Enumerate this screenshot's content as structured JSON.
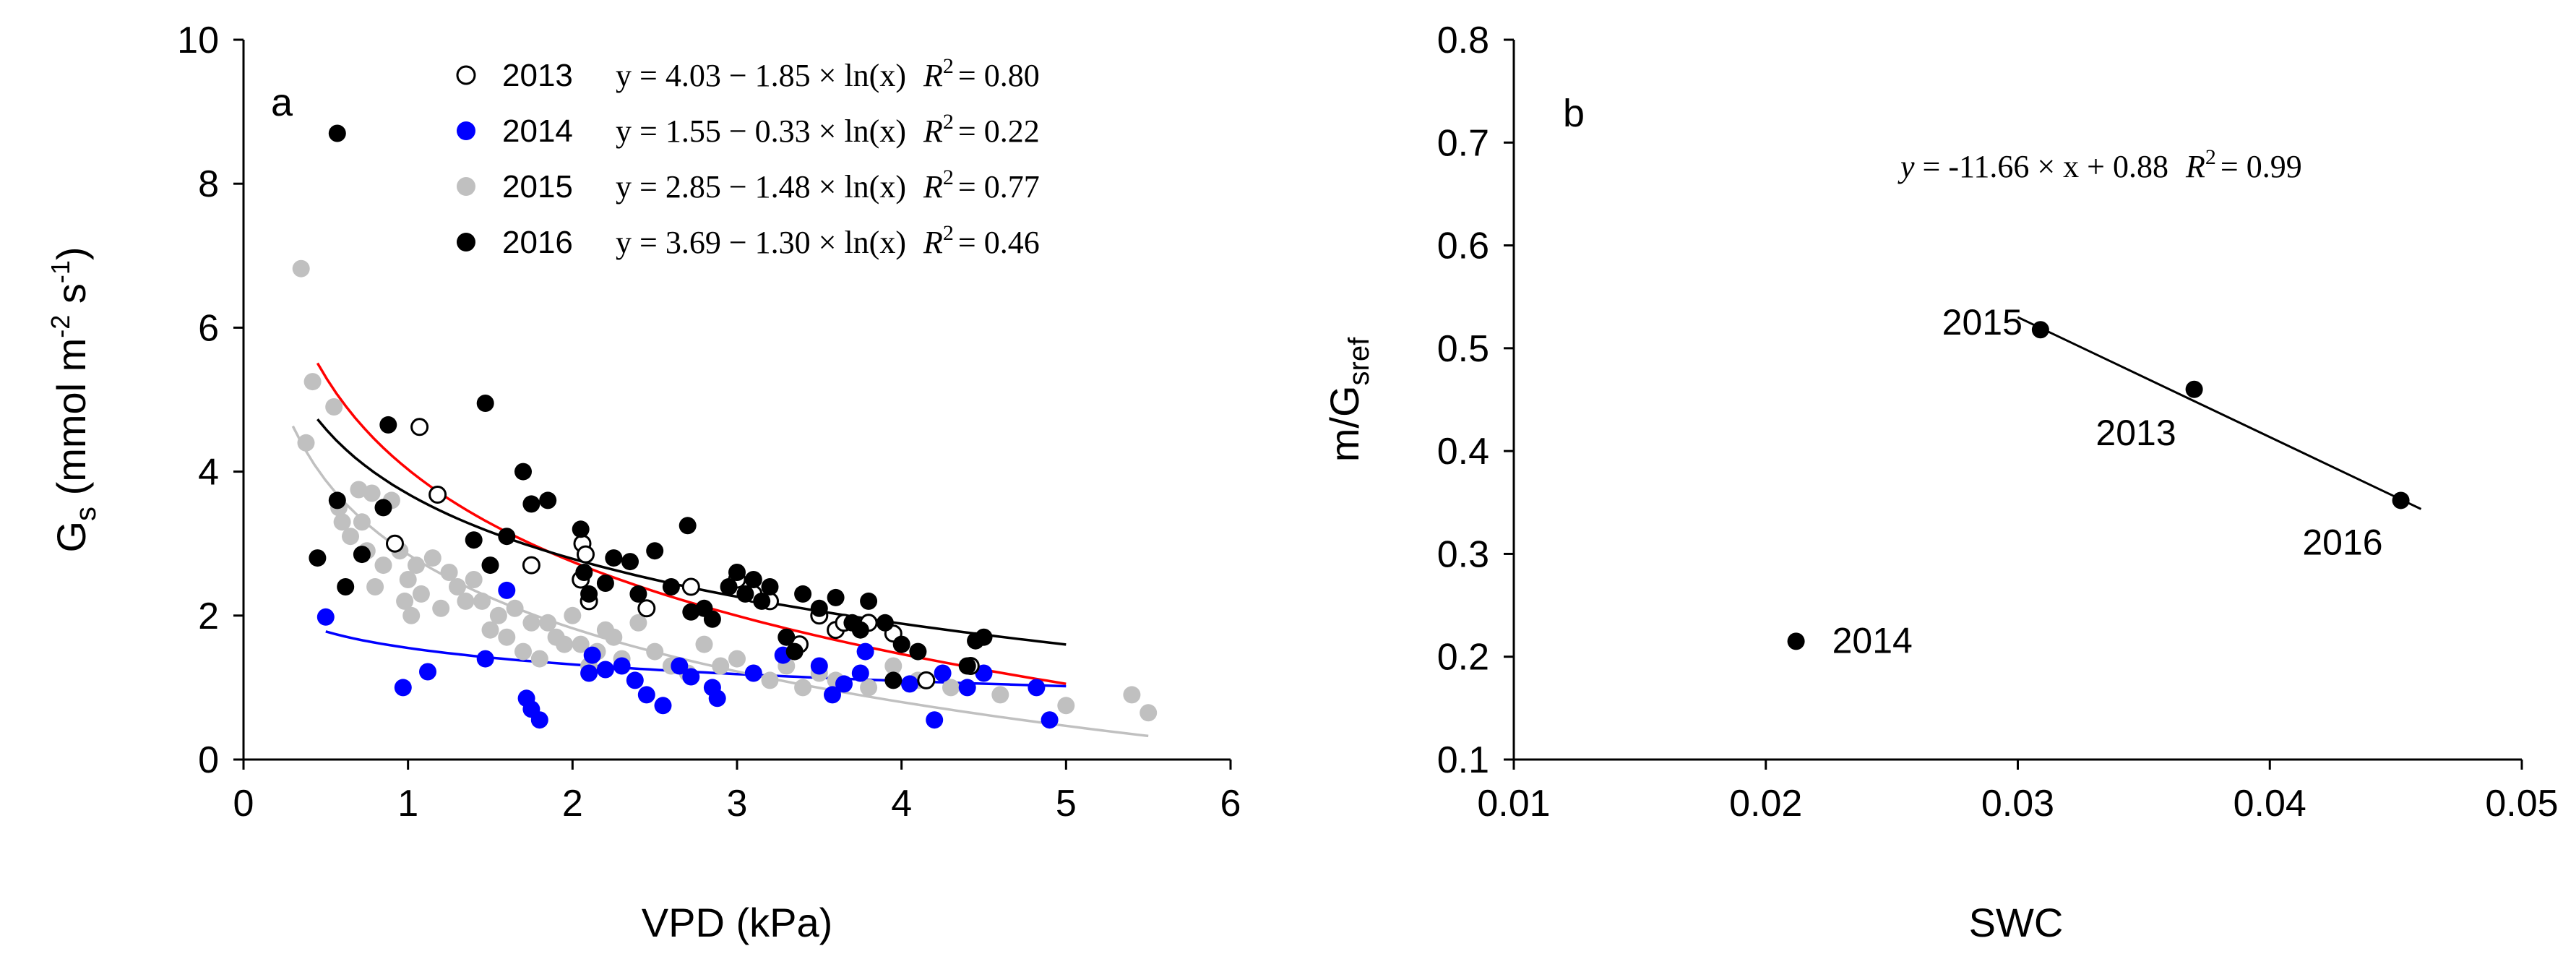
{
  "chart_data": [
    {
      "panel": "a",
      "type": "scatter",
      "xlabel": "VPD (kPa)",
      "ylabel_main": "G",
      "ylabel_sub": "s",
      "ylabel_unit_pre": " (mmol m",
      "ylabel_exp1": "-2",
      "ylabel_unit_mid": " s",
      "ylabel_exp2": "-1",
      "ylabel_unit_post": ")",
      "xlim": [
        0,
        6
      ],
      "ylim": [
        0,
        10
      ],
      "xticks": [
        "0",
        "1",
        "2",
        "3",
        "4",
        "5",
        "6"
      ],
      "yticks": [
        "0",
        "2",
        "4",
        "6",
        "8",
        "10"
      ],
      "legend_position": "top-right",
      "series": [
        {
          "name": "2013",
          "equation": "y = 4.03 − 1.85 × ln(x)",
          "r2_label": "R",
          "r2_value": "= 0.80",
          "marker": "open-circle",
          "color": "#000000",
          "fit": {
            "a": 4.03,
            "b": 1.85,
            "xmin": 0.45,
            "xmax": 5.0
          },
          "fit_color": "#ff0000",
          "points": [
            [
              1.07,
              4.62
            ],
            [
              1.18,
              3.68
            ],
            [
              0.92,
              3.0
            ],
            [
              1.75,
              2.7
            ],
            [
              2.06,
              3.0
            ],
            [
              2.08,
              2.85
            ],
            [
              2.05,
              2.5
            ],
            [
              2.1,
              2.2
            ],
            [
              2.45,
              2.1
            ],
            [
              2.72,
              2.4
            ],
            [
              3.0,
              2.5
            ],
            [
              3.1,
              2.3
            ],
            [
              3.2,
              2.2
            ],
            [
              3.5,
              2.0
            ],
            [
              3.6,
              1.8
            ],
            [
              3.65,
              1.9
            ],
            [
              3.8,
              1.9
            ],
            [
              3.38,
              1.6
            ],
            [
              4.15,
              1.1
            ],
            [
              4.42,
              1.3
            ],
            [
              3.95,
              1.75
            ]
          ]
        },
        {
          "name": "2014",
          "equation": "y = 1.55 − 0.33 × ln(x)",
          "r2_label": "R",
          "r2_value": "= 0.22",
          "marker": "filled-circle",
          "color": "#0000ff",
          "fit": {
            "a": 1.55,
            "b": 0.33,
            "xmin": 0.5,
            "xmax": 5.0
          },
          "fit_color": "#0000ff",
          "points": [
            [
              0.5,
              1.98
            ],
            [
              0.97,
              1.0
            ],
            [
              1.12,
              1.22
            ],
            [
              1.47,
              1.4
            ],
            [
              1.6,
              2.35
            ],
            [
              1.72,
              0.85
            ],
            [
              1.75,
              0.7
            ],
            [
              1.8,
              0.55
            ],
            [
              2.1,
              1.2
            ],
            [
              2.12,
              1.45
            ],
            [
              2.2,
              1.25
            ],
            [
              2.3,
              1.3
            ],
            [
              2.38,
              1.1
            ],
            [
              2.45,
              0.9
            ],
            [
              2.55,
              0.75
            ],
            [
              2.65,
              1.3
            ],
            [
              2.72,
              1.15
            ],
            [
              2.85,
              1.0
            ],
            [
              2.88,
              0.85
            ],
            [
              3.1,
              1.2
            ],
            [
              3.28,
              1.45
            ],
            [
              3.5,
              1.3
            ],
            [
              3.58,
              0.9
            ],
            [
              3.65,
              1.05
            ],
            [
              3.75,
              1.2
            ],
            [
              3.78,
              1.5
            ],
            [
              4.05,
              1.05
            ],
            [
              4.2,
              0.55
            ],
            [
              4.25,
              1.2
            ],
            [
              4.4,
              1.0
            ],
            [
              4.5,
              1.2
            ],
            [
              4.82,
              1.0
            ],
            [
              4.9,
              0.55
            ]
          ]
        },
        {
          "name": "2015",
          "equation": "y = 2.85 − 1.48 × ln(x)",
          "r2_label": "R",
          "r2_value": "= 0.77",
          "marker": "filled-circle",
          "color": "#c0c0c0",
          "fit": {
            "a": 2.85,
            "b": 1.48,
            "xmin": 0.3,
            "xmax": 5.5
          },
          "fit_color": "#c0c0c0",
          "points": [
            [
              0.35,
              6.82
            ],
            [
              0.38,
              4.4
            ],
            [
              0.42,
              5.25
            ],
            [
              0.55,
              4.9
            ],
            [
              0.58,
              3.5
            ],
            [
              0.6,
              3.3
            ],
            [
              0.65,
              3.1
            ],
            [
              0.7,
              3.75
            ],
            [
              0.72,
              3.3
            ],
            [
              0.75,
              2.9
            ],
            [
              0.78,
              3.7
            ],
            [
              0.8,
              2.4
            ],
            [
              0.85,
              2.7
            ],
            [
              0.9,
              3.6
            ],
            [
              0.95,
              2.9
            ],
            [
              0.98,
              2.2
            ],
            [
              1.0,
              2.5
            ],
            [
              1.02,
              2.0
            ],
            [
              1.05,
              2.7
            ],
            [
              1.08,
              2.3
            ],
            [
              1.15,
              2.8
            ],
            [
              1.2,
              2.1
            ],
            [
              1.25,
              2.6
            ],
            [
              1.3,
              2.4
            ],
            [
              1.35,
              2.2
            ],
            [
              1.4,
              2.5
            ],
            [
              1.45,
              2.2
            ],
            [
              1.5,
              1.8
            ],
            [
              1.55,
              2.0
            ],
            [
              1.6,
              1.7
            ],
            [
              1.65,
              2.1
            ],
            [
              1.7,
              1.5
            ],
            [
              1.75,
              1.9
            ],
            [
              1.8,
              1.4
            ],
            [
              1.85,
              1.9
            ],
            [
              1.9,
              1.7
            ],
            [
              1.95,
              1.6
            ],
            [
              2.0,
              2.0
            ],
            [
              2.05,
              1.6
            ],
            [
              2.1,
              1.3
            ],
            [
              2.15,
              1.5
            ],
            [
              2.2,
              1.8
            ],
            [
              2.25,
              1.7
            ],
            [
              2.3,
              1.4
            ],
            [
              2.4,
              1.9
            ],
            [
              2.5,
              1.5
            ],
            [
              2.6,
              1.3
            ],
            [
              2.7,
              1.2
            ],
            [
              2.8,
              1.6
            ],
            [
              2.9,
              1.3
            ],
            [
              3.0,
              1.4
            ],
            [
              3.1,
              1.2
            ],
            [
              3.2,
              1.1
            ],
            [
              3.3,
              1.3
            ],
            [
              3.4,
              1.0
            ],
            [
              3.5,
              1.2
            ],
            [
              3.6,
              1.1
            ],
            [
              3.8,
              1.0
            ],
            [
              3.95,
              1.3
            ],
            [
              4.1,
              1.1
            ],
            [
              4.3,
              1.0
            ],
            [
              4.6,
              0.9
            ],
            [
              5.0,
              0.75
            ],
            [
              5.4,
              0.9
            ],
            [
              5.5,
              0.65
            ]
          ]
        },
        {
          "name": "2016",
          "equation": "y = 3.69 − 1.30 × ln(x)",
          "r2_label": "R",
          "r2_value": "= 0.46",
          "marker": "filled-circle",
          "color": "#000000",
          "fit": {
            "a": 3.69,
            "b": 1.3,
            "xmin": 0.45,
            "xmax": 5.0
          },
          "fit_color": "#000000",
          "points": [
            [
              0.45,
              2.8
            ],
            [
              0.57,
              8.7
            ],
            [
              0.57,
              3.6
            ],
            [
              0.62,
              2.4
            ],
            [
              0.72,
              2.85
            ],
            [
              0.85,
              3.5
            ],
            [
              0.88,
              4.65
            ],
            [
              1.4,
              3.05
            ],
            [
              1.47,
              4.95
            ],
            [
              1.5,
              2.7
            ],
            [
              1.6,
              3.1
            ],
            [
              1.7,
              4.0
            ],
            [
              1.75,
              3.55
            ],
            [
              1.85,
              3.6
            ],
            [
              2.05,
              3.2
            ],
            [
              2.07,
              2.6
            ],
            [
              2.1,
              2.3
            ],
            [
              2.2,
              2.45
            ],
            [
              2.25,
              2.8
            ],
            [
              2.35,
              2.75
            ],
            [
              2.4,
              2.3
            ],
            [
              2.5,
              2.9
            ],
            [
              2.6,
              2.4
            ],
            [
              2.7,
              3.25
            ],
            [
              2.72,
              2.05
            ],
            [
              2.8,
              2.1
            ],
            [
              2.85,
              1.95
            ],
            [
              2.95,
              2.4
            ],
            [
              3.0,
              2.6
            ],
            [
              3.05,
              2.3
            ],
            [
              3.1,
              2.5
            ],
            [
              3.15,
              2.2
            ],
            [
              3.2,
              2.4
            ],
            [
              3.3,
              1.7
            ],
            [
              3.35,
              1.5
            ],
            [
              3.4,
              2.3
            ],
            [
              3.5,
              2.1
            ],
            [
              3.6,
              2.25
            ],
            [
              3.7,
              1.9
            ],
            [
              3.75,
              1.8
            ],
            [
              3.8,
              2.2
            ],
            [
              3.9,
              1.9
            ],
            [
              3.95,
              1.1
            ],
            [
              4.0,
              1.6
            ],
            [
              4.1,
              1.5
            ],
            [
              4.4,
              1.3
            ],
            [
              4.45,
              1.65
            ],
            [
              4.5,
              1.7
            ]
          ]
        }
      ]
    },
    {
      "panel": "b",
      "type": "scatter",
      "xlabel": "SWC",
      "ylabel_main": "m/G",
      "ylabel_sub": "sref",
      "xlim": [
        0.01,
        0.05
      ],
      "ylim": [
        0.1,
        0.8
      ],
      "xticks": [
        "0.01",
        "0.02",
        "0.03",
        "0.04",
        "0.05"
      ],
      "yticks": [
        "0.1",
        "0.2",
        "0.3",
        "0.4",
        "0.5",
        "0.6",
        "0.7",
        "0.8"
      ],
      "equation": "y = -11.66 × x + 0.88",
      "r2_label": "R",
      "r2_value": "= 0.99",
      "fit": {
        "slope": -11.66,
        "intercept": 0.88,
        "xmin": 0.03,
        "xmax": 0.046
      },
      "points": [
        {
          "x": 0.0212,
          "y": 0.215,
          "label": "2014"
        },
        {
          "x": 0.0309,
          "y": 0.518,
          "label": "2015"
        },
        {
          "x": 0.037,
          "y": 0.46,
          "label": "2013"
        },
        {
          "x": 0.0452,
          "y": 0.352,
          "label": "2016"
        }
      ]
    }
  ]
}
